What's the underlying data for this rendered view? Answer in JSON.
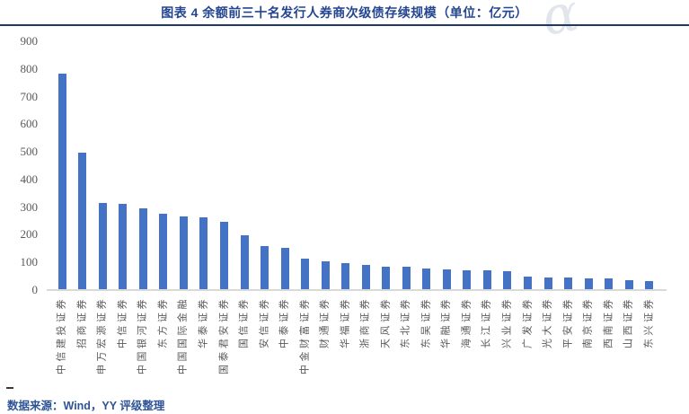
{
  "header": {
    "title": "图表 4 余额前三十名发行人券商次级债存续规模（单位：亿元）"
  },
  "watermark_glyph": "α",
  "footer": {
    "source": "数据来源：Wind，YY 评级整理"
  },
  "colors": {
    "title": "#24458F",
    "rule": "#1F3864",
    "bar": "#4472C4",
    "axis_line": "#D9D9D9",
    "axis_label": "#595959",
    "source": "#2F5496",
    "watermark": "#E2E6EC"
  },
  "chart_data": {
    "type": "bar",
    "title": "图表 4 余额前三十名发行人券商次级债存续规模（单位：亿元）",
    "unit": "亿元",
    "categories": [
      "中信建投证券",
      "招商证券",
      "申万宏源证券",
      "中信证券",
      "中国银河证券",
      "东方证券",
      "中国国际金融",
      "华泰证券",
      "国泰君安证券",
      "国信证券",
      "安信证券",
      "中泰证券",
      "中金财富证券",
      "财通证券",
      "华福证券",
      "浙商证券",
      "天风证券",
      "东北证券",
      "东吴证券",
      "华融证券",
      "海通证券",
      "长江证券",
      "兴业证券",
      "广发证券",
      "光大证券",
      "平安证券",
      "南京证券",
      "西南证券",
      "山西证券",
      "东兴证券"
    ],
    "values": [
      783,
      498,
      315,
      312,
      297,
      275,
      268,
      264,
      247,
      198,
      160,
      154,
      113,
      104,
      96,
      92,
      85,
      83,
      77,
      75,
      73,
      71,
      68,
      50,
      46,
      45,
      43,
      42,
      35,
      33
    ],
    "xlabel": "",
    "ylabel": "",
    "ylim": [
      0,
      900
    ],
    "ytick_interval": 100,
    "yticks": [
      0,
      100,
      200,
      300,
      400,
      500,
      600,
      700,
      800,
      900
    ],
    "grid": false,
    "legend": false
  }
}
